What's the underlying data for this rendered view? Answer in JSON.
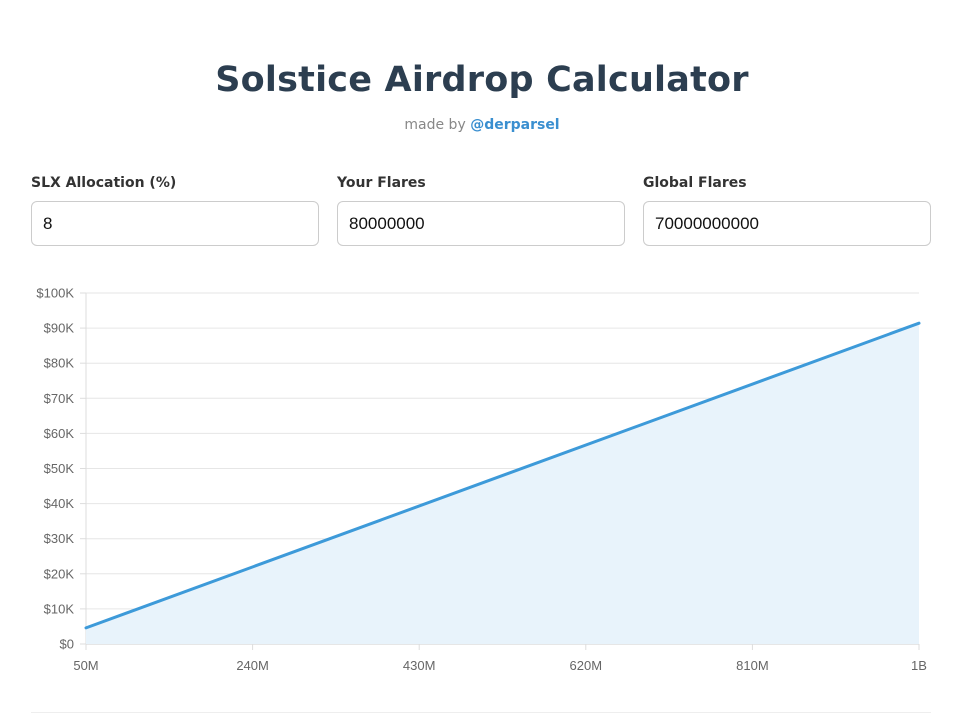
{
  "header": {
    "title": "Solstice Airdrop Calculator",
    "byline_prefix": "made by",
    "author_handle": "@derparsel"
  },
  "inputs": {
    "allocation": {
      "label": "SLX Allocation (%)",
      "value": "8"
    },
    "your_flares": {
      "label": "Your Flares",
      "value": "80000000"
    },
    "global_flares": {
      "label": "Global Flares",
      "value": "70000000000"
    }
  },
  "colors": {
    "title": "#2c3e50",
    "accent": "#3a8fd0",
    "line": "#3d9ad9",
    "area_fill": "#e8f3fb",
    "grid": "#e6e6e6"
  },
  "chart_data": {
    "type": "area",
    "title": "",
    "xlabel": "",
    "ylabel": "",
    "x_tick_labels": [
      "50M",
      "240M",
      "430M",
      "620M",
      "810M",
      "1B"
    ],
    "x_ticks": [
      50000000,
      240000000,
      430000000,
      620000000,
      810000000,
      1000000000
    ],
    "y_tick_labels": [
      "$0",
      "$10K",
      "$20K",
      "$30K",
      "$40K",
      "$50K",
      "$60K",
      "$70K",
      "$80K",
      "$90K",
      "$100K"
    ],
    "y_ticks": [
      0,
      10000,
      20000,
      30000,
      40000,
      50000,
      60000,
      70000,
      80000,
      90000,
      100000
    ],
    "xlim": [
      50000000,
      1000000000
    ],
    "ylim": [
      0,
      100000
    ],
    "grid": true,
    "legend": "none",
    "series": [
      {
        "x": [
          50000000,
          1000000000
        ],
        "y": [
          4600,
          91400
        ]
      }
    ]
  }
}
